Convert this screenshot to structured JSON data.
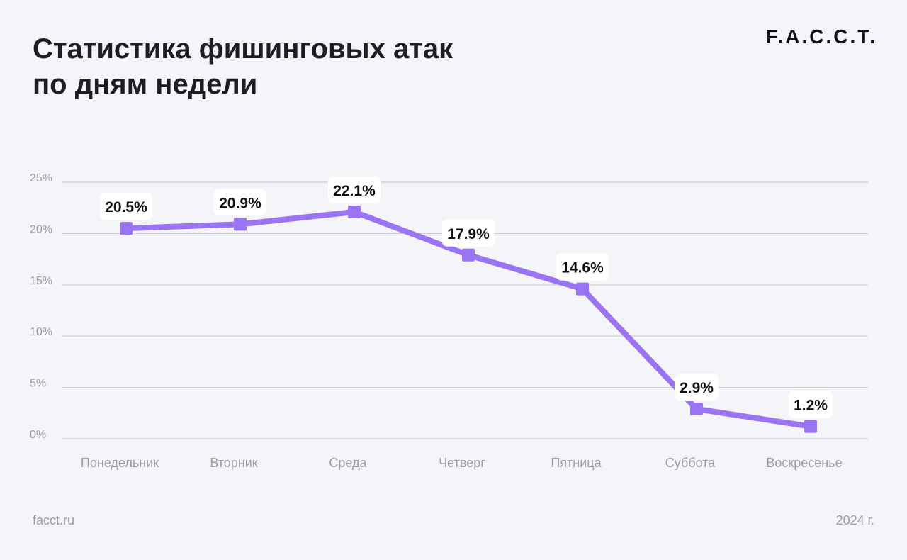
{
  "header": {
    "title_line1": "Статистика фишинговых атак",
    "title_line2": "по дням недели",
    "logo": "F.A.C.C.T."
  },
  "footer": {
    "site": "facct.ru",
    "year": "2024 г."
  },
  "colors": {
    "line": "#9a74f2",
    "grid": "#c9cbd3",
    "axis_text": "#9a9ca6",
    "label_bg": "#ffffff",
    "label_text": "#111111",
    "background": "#f4f5f9"
  },
  "chart_data": {
    "type": "line",
    "categories": [
      "Понедельник",
      "Вторник",
      "Среда",
      "Четверг",
      "Пятница",
      "Суббота",
      "Воскресенье"
    ],
    "series": [
      {
        "values": [
          20.5,
          20.9,
          22.1,
          17.9,
          14.6,
          2.9,
          1.2
        ],
        "labels": [
          "20.5%",
          "20.9%",
          "22.1%",
          "17.9%",
          "14.6%",
          "2.9%",
          "1.2%"
        ]
      }
    ],
    "yticks": [
      0,
      5,
      10,
      15,
      20,
      25
    ],
    "ytick_labels": [
      "0%",
      "5%",
      "10%",
      "15%",
      "20%",
      "25%"
    ],
    "ylim": [
      0,
      25
    ],
    "grid": true,
    "legend": "none"
  }
}
